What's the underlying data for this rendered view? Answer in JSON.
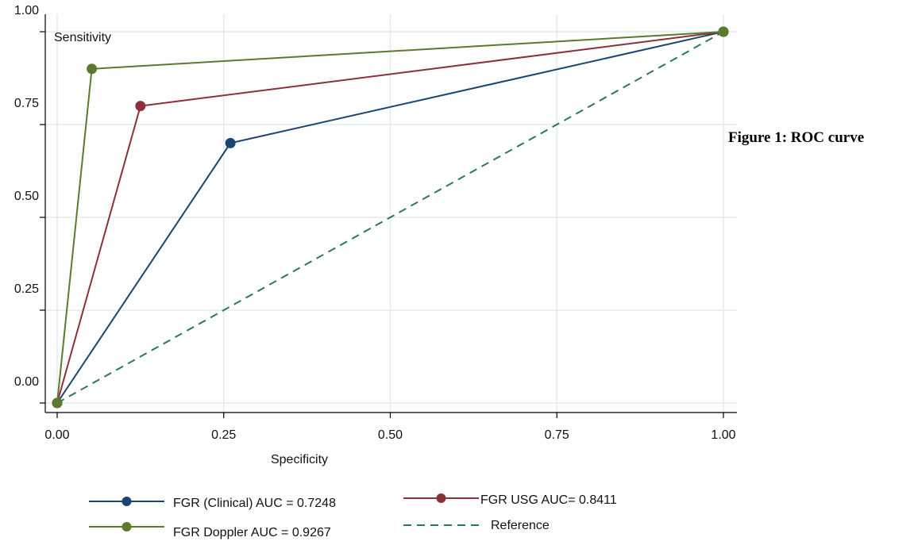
{
  "caption": "Figure 1: ROC curve",
  "chart_data": {
    "type": "line",
    "xlabel": "Specificity",
    "ylabel": "Sensitivity",
    "xlim": [
      0,
      1
    ],
    "ylim": [
      0,
      1
    ],
    "x_ticks": [
      "0.00",
      "0.25",
      "0.50",
      "0.75",
      "1.00"
    ],
    "y_ticks": [
      "0.00",
      "0.25",
      "0.50",
      "0.75",
      "1.00"
    ],
    "grid": true,
    "legend_position": "bottom",
    "series": [
      {
        "name": "FGR (Clinical) AUC = 0.7248",
        "color": "#1a4472",
        "style": "solid",
        "markers": true,
        "x": [
          0,
          0.26,
          1
        ],
        "y": [
          0,
          0.7,
          1
        ]
      },
      {
        "name": "FGR USG AUC= 0.8411",
        "color": "#8c3039",
        "style": "solid",
        "markers": true,
        "x": [
          0,
          0.125,
          1
        ],
        "y": [
          0,
          0.8,
          1
        ]
      },
      {
        "name": "FGR Doppler AUC = 0.9267",
        "color": "#5a7b2e",
        "style": "solid",
        "markers": true,
        "x": [
          0,
          0.052,
          1
        ],
        "y": [
          0,
          0.9,
          1
        ]
      },
      {
        "name": "Reference",
        "color": "#2b7566",
        "style": "dashed",
        "markers": false,
        "x": [
          0,
          1
        ],
        "y": [
          0,
          1
        ]
      }
    ]
  }
}
